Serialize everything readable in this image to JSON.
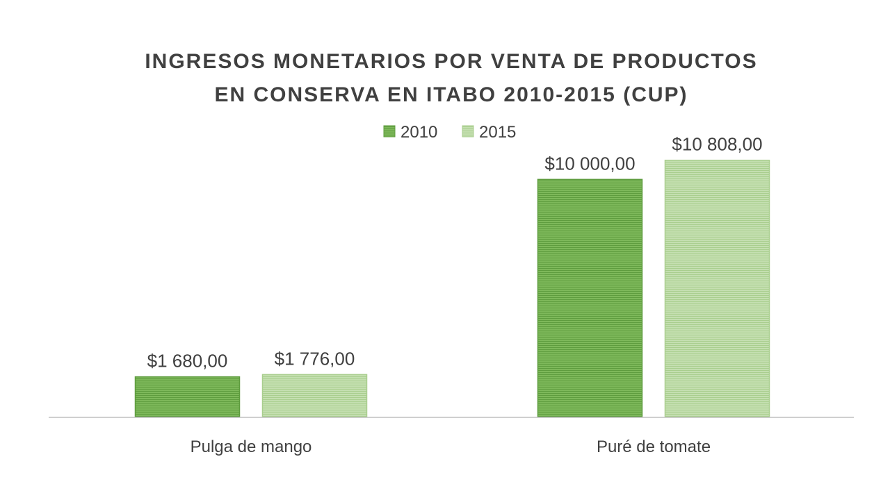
{
  "chart_data": {
    "type": "bar",
    "title_lines": [
      "INGRESOS MONETARIOS POR VENTA DE PRODUCTOS",
      "EN CONSERVA EN ITABO 2010-2015 (CUP)"
    ],
    "categories": [
      "Pulga de mango",
      "Puré de tomate"
    ],
    "series": [
      {
        "name": "2010",
        "values": [
          1680,
          10000
        ],
        "labels": [
          "$1 680,00",
          "$10 000,00"
        ],
        "color": "#70AD47"
      },
      {
        "name": "2015",
        "values": [
          1776,
          10808
        ],
        "labels": [
          "$1 776,00",
          "$10 808,00"
        ],
        "color": "#B7D7A0"
      }
    ],
    "ylim": [
      0,
      12000
    ],
    "grid": false,
    "legend_position": "top"
  }
}
